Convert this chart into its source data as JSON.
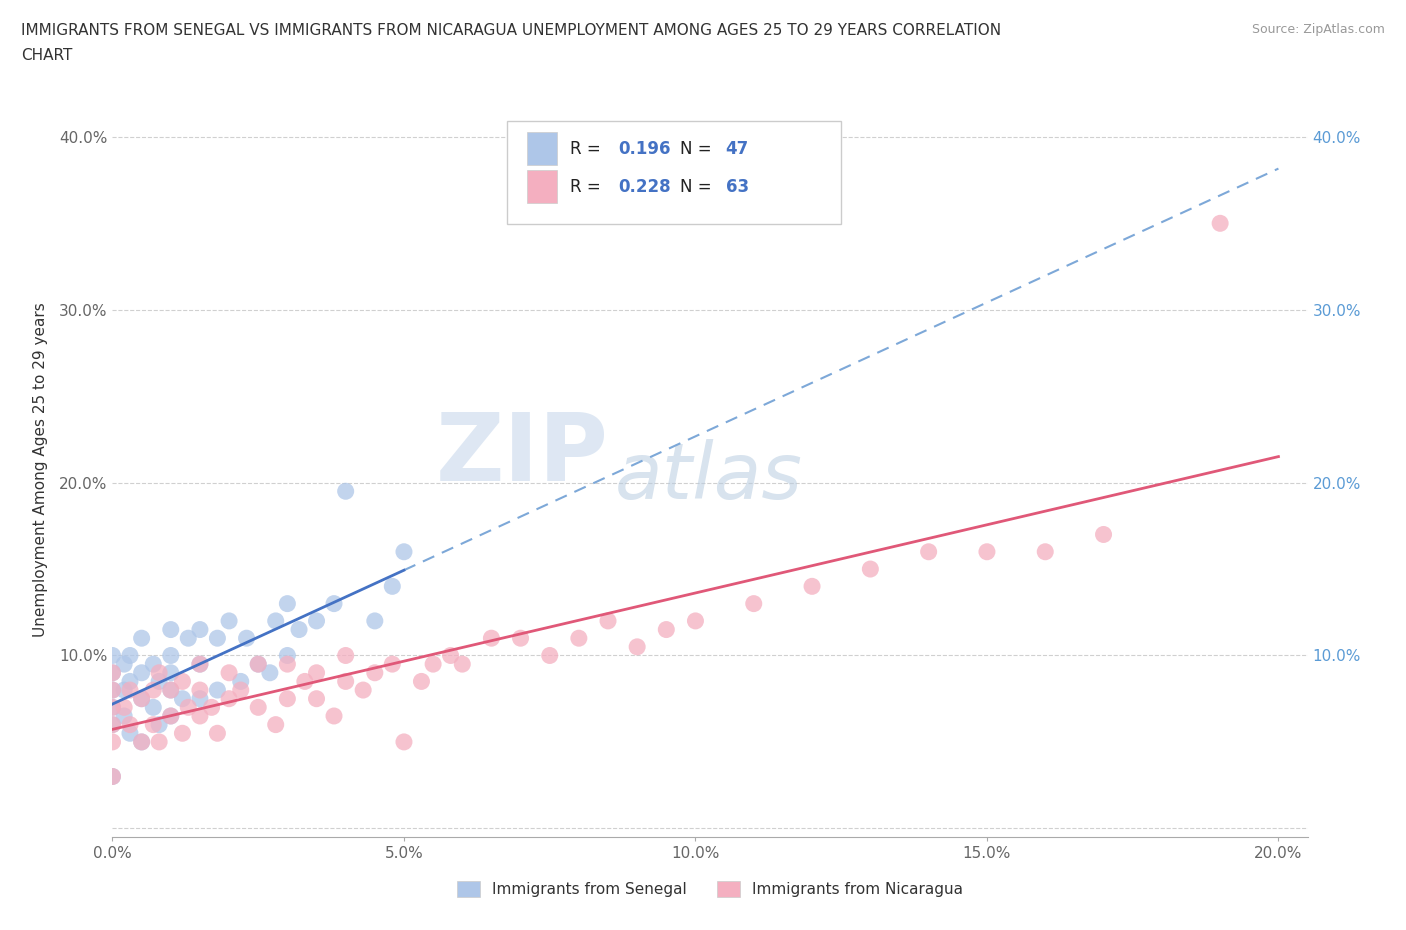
{
  "title": "IMMIGRANTS FROM SENEGAL VS IMMIGRANTS FROM NICARAGUA UNEMPLOYMENT AMONG AGES 25 TO 29 YEARS CORRELATION\nCHART",
  "source": "Source: ZipAtlas.com",
  "ylabel": "Unemployment Among Ages 25 to 29 years",
  "xlim": [
    0.0,
    0.205
  ],
  "ylim": [
    -0.005,
    0.42
  ],
  "xticks": [
    0.0,
    0.05,
    0.1,
    0.15,
    0.2
  ],
  "xticklabels": [
    "0.0%",
    "5.0%",
    "10.0%",
    "15.0%",
    "20.0%"
  ],
  "yticks": [
    0.0,
    0.1,
    0.2,
    0.3,
    0.4
  ],
  "ytick_left_labels": [
    "",
    "10.0%",
    "20.0%",
    "30.0%",
    "40.0%"
  ],
  "ytick_right_labels": [
    "",
    "10.0%",
    "20.0%",
    "30.0%",
    "40.0%"
  ],
  "senegal_color": "#aec6e8",
  "nicaragua_color": "#f4afc0",
  "senegal_line_color": "#4472c4",
  "senegal_dash_color": "#7da8d8",
  "nicaragua_line_color": "#e05878",
  "R_senegal": 0.196,
  "N_senegal": 47,
  "R_nicaragua": 0.228,
  "N_nicaragua": 63,
  "watermark_zip": "ZIP",
  "watermark_atlas": "atlas",
  "senegal_x": [
    0.0,
    0.0,
    0.0,
    0.0,
    0.0,
    0.0,
    0.002,
    0.002,
    0.002,
    0.003,
    0.003,
    0.003,
    0.005,
    0.005,
    0.005,
    0.005,
    0.007,
    0.007,
    0.008,
    0.008,
    0.01,
    0.01,
    0.01,
    0.01,
    0.01,
    0.012,
    0.013,
    0.015,
    0.015,
    0.015,
    0.018,
    0.018,
    0.02,
    0.022,
    0.023,
    0.025,
    0.027,
    0.028,
    0.03,
    0.03,
    0.032,
    0.035,
    0.038,
    0.04,
    0.045,
    0.048,
    0.05
  ],
  "senegal_y": [
    0.06,
    0.07,
    0.08,
    0.09,
    0.1,
    0.03,
    0.065,
    0.08,
    0.095,
    0.055,
    0.085,
    0.1,
    0.05,
    0.075,
    0.09,
    0.11,
    0.07,
    0.095,
    0.06,
    0.085,
    0.065,
    0.08,
    0.09,
    0.1,
    0.115,
    0.075,
    0.11,
    0.075,
    0.095,
    0.115,
    0.08,
    0.11,
    0.12,
    0.085,
    0.11,
    0.095,
    0.09,
    0.12,
    0.1,
    0.13,
    0.115,
    0.12,
    0.13,
    0.195,
    0.12,
    0.14,
    0.16
  ],
  "nicaragua_x": [
    0.0,
    0.0,
    0.0,
    0.0,
    0.0,
    0.0,
    0.002,
    0.003,
    0.003,
    0.005,
    0.005,
    0.007,
    0.007,
    0.008,
    0.008,
    0.01,
    0.01,
    0.012,
    0.012,
    0.013,
    0.015,
    0.015,
    0.015,
    0.017,
    0.018,
    0.02,
    0.02,
    0.022,
    0.025,
    0.025,
    0.028,
    0.03,
    0.03,
    0.033,
    0.035,
    0.035,
    0.038,
    0.04,
    0.04,
    0.043,
    0.045,
    0.048,
    0.05,
    0.053,
    0.055,
    0.058,
    0.06,
    0.065,
    0.07,
    0.075,
    0.08,
    0.085,
    0.09,
    0.095,
    0.1,
    0.11,
    0.12,
    0.13,
    0.14,
    0.15,
    0.16,
    0.17,
    0.19
  ],
  "nicaragua_y": [
    0.06,
    0.07,
    0.08,
    0.09,
    0.05,
    0.03,
    0.07,
    0.06,
    0.08,
    0.05,
    0.075,
    0.06,
    0.08,
    0.05,
    0.09,
    0.065,
    0.08,
    0.055,
    0.085,
    0.07,
    0.065,
    0.08,
    0.095,
    0.07,
    0.055,
    0.075,
    0.09,
    0.08,
    0.07,
    0.095,
    0.06,
    0.075,
    0.095,
    0.085,
    0.075,
    0.09,
    0.065,
    0.085,
    0.1,
    0.08,
    0.09,
    0.095,
    0.05,
    0.085,
    0.095,
    0.1,
    0.095,
    0.11,
    0.11,
    0.1,
    0.11,
    0.12,
    0.105,
    0.115,
    0.12,
    0.13,
    0.14,
    0.15,
    0.16,
    0.16,
    0.16,
    0.17,
    0.35
  ]
}
